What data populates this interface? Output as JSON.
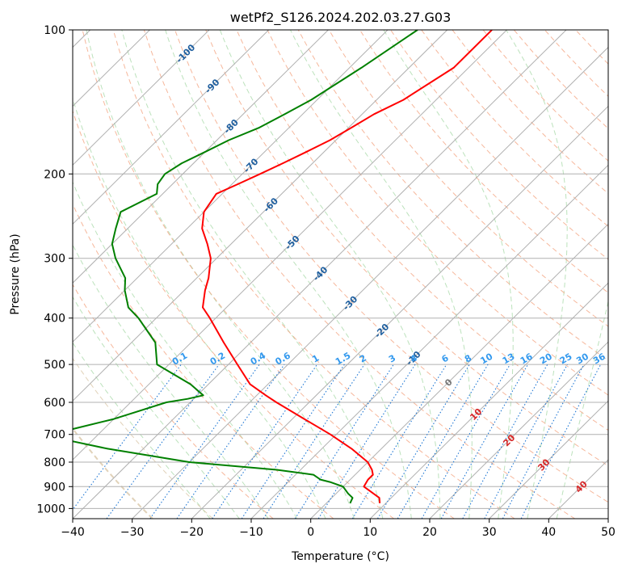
{
  "chart_data": {
    "type": "line",
    "subtype": "skew-t log-p diagram",
    "title": "wetPf2_S126.2024.202.03.27.G03",
    "xlabel": "Temperature (°C)",
    "ylabel": "Pressure (hPa)",
    "xlim": [
      -40,
      50
    ],
    "ylim": [
      1050,
      100
    ],
    "y_scale": "log",
    "grid": true,
    "x_ticks": [
      -40,
      -30,
      -20,
      -10,
      0,
      10,
      20,
      30,
      40,
      50
    ],
    "x_tick_labels": [
      "−40",
      "−30",
      "−20",
      "−10",
      "0",
      "10",
      "20",
      "30",
      "40",
      "50"
    ],
    "y_ticks": [
      100,
      200,
      300,
      400,
      500,
      600,
      700,
      800,
      900,
      1000
    ],
    "y_tick_labels": [
      "100",
      "200",
      "300",
      "400",
      "500",
      "600",
      "700",
      "800",
      "900",
      "1000"
    ],
    "isotherm_labels": [
      "-100",
      "-90",
      "-80",
      "-70",
      "-60",
      "-50",
      "-40",
      "-30",
      "-20",
      "-10",
      "0",
      "10",
      "20",
      "30",
      "40"
    ],
    "mixing_ratio_labels": [
      "0.1",
      "0.2",
      "0.4",
      "0.6",
      "1",
      "1.5",
      "2",
      "3",
      "4",
      "6",
      "8",
      "10",
      "13",
      "16",
      "20",
      "25",
      "30",
      "36"
    ],
    "colors": {
      "temperature": "#ff0000",
      "dewpoint": "#008000",
      "isotherm": "#aaaaaa",
      "dry_adiabat": "#f4a582",
      "moist_adiabat": "#a6d8a6",
      "mixing_ratio": "#1f77d4",
      "label_blue": "#1f5f9f",
      "label_red": "#d62728",
      "label_gray": "#777777"
    },
    "series": [
      {
        "name": "Temperature",
        "points": [
          [
            100,
            -52.5
          ],
          [
            120,
            -52.5
          ],
          [
            140,
            -55.5
          ],
          [
            150,
            -58
          ],
          [
            160,
            -59.5
          ],
          [
            170,
            -61
          ],
          [
            180,
            -63
          ],
          [
            190,
            -65
          ],
          [
            200,
            -67
          ],
          [
            210,
            -69
          ],
          [
            220,
            -71
          ],
          [
            240,
            -70
          ],
          [
            260,
            -67.5
          ],
          [
            280,
            -64
          ],
          [
            300,
            -61
          ],
          [
            330,
            -58
          ],
          [
            350,
            -56.5
          ],
          [
            380,
            -54
          ],
          [
            400,
            -51
          ],
          [
            450,
            -44.5
          ],
          [
            500,
            -38.5
          ],
          [
            550,
            -33
          ],
          [
            580,
            -28.5
          ],
          [
            600,
            -25.5
          ],
          [
            650,
            -18
          ],
          [
            700,
            -11
          ],
          [
            750,
            -5
          ],
          [
            800,
            0
          ],
          [
            830,
            2
          ],
          [
            850,
            3
          ],
          [
            870,
            3
          ],
          [
            900,
            3.5
          ],
          [
            950,
            8
          ],
          [
            975,
            9
          ]
        ]
      },
      {
        "name": "Dewpoint",
        "points": [
          [
            100,
            -65
          ],
          [
            120,
            -68
          ],
          [
            140,
            -71
          ],
          [
            150,
            -73
          ],
          [
            160,
            -75
          ],
          [
            170,
            -78
          ],
          [
            180,
            -80
          ],
          [
            190,
            -82
          ],
          [
            200,
            -83
          ],
          [
            210,
            -82.5
          ],
          [
            220,
            -81
          ],
          [
            240,
            -84
          ],
          [
            260,
            -82
          ],
          [
            280,
            -80
          ],
          [
            300,
            -77
          ],
          [
            330,
            -72
          ],
          [
            350,
            -70
          ],
          [
            380,
            -66.5
          ],
          [
            400,
            -63
          ],
          [
            450,
            -56
          ],
          [
            500,
            -52
          ],
          [
            550,
            -43
          ],
          [
            580,
            -39
          ],
          [
            590,
            -41
          ],
          [
            600,
            -44
          ],
          [
            650,
            -50
          ],
          [
            700,
            -58
          ],
          [
            710,
            -57
          ],
          [
            750,
            -46
          ],
          [
            800,
            -30
          ],
          [
            830,
            -14
          ],
          [
            850,
            -7
          ],
          [
            870,
            -5
          ],
          [
            880,
            -3
          ],
          [
            900,
            0
          ],
          [
            930,
            2
          ],
          [
            950,
            3.5
          ],
          [
            975,
            4
          ]
        ]
      }
    ]
  }
}
